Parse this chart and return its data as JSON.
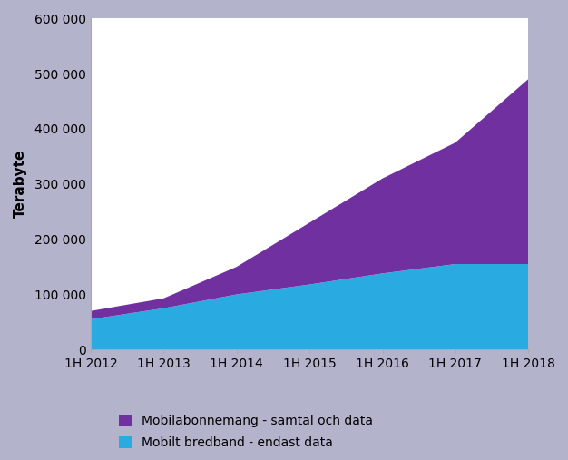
{
  "x_labels": [
    "1H 2012",
    "1H 2013",
    "1H 2014",
    "1H 2015",
    "1H 2016",
    "1H 2017",
    "1H 2018"
  ],
  "mobile_broadband": [
    55000,
    75000,
    100000,
    118000,
    138000,
    155000,
    155000
  ],
  "mobile_subscription": [
    15000,
    18000,
    50000,
    112000,
    172000,
    220000,
    335000
  ],
  "color_broadband": "#29ABE2",
  "color_subscription": "#7030A0",
  "ylabel": "Terabyte",
  "ylim": [
    0,
    600000
  ],
  "yticks": [
    0,
    100000,
    200000,
    300000,
    400000,
    500000,
    600000
  ],
  "background_color": "#B3B3CC",
  "plot_bg": "#FFFFFF",
  "legend_label_subscription": "Mobilabonnemang - samtal och data",
  "legend_label_broadband": "Mobilt bredband - endast data",
  "tick_label_fontsize": 10,
  "ylabel_fontsize": 11,
  "legend_fontsize": 10
}
